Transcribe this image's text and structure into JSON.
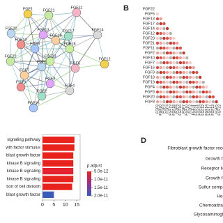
{
  "network": {
    "nodes": [
      "FGF1",
      "FGF21",
      "FGF11",
      "FGF20",
      "FGF13",
      "FGF19",
      "FGF17",
      "FGF14",
      "FGF10",
      "FGF8",
      "FGF18",
      "FGF12",
      "FGF22",
      "FGF5",
      "FGF6",
      "FGF3",
      "FGF7",
      "FGF2",
      "FGF4",
      "FGF9",
      "FGF16",
      "FGF23"
    ]
  },
  "correlation": {
    "label": "B",
    "rows": [
      "FGF22",
      "FGF5",
      "FGF13",
      "FGF17",
      "FGF14",
      "FGF12",
      "FGF23",
      "FGF21",
      "FGF11",
      "FGF2",
      "FGF10",
      "FGF7",
      "FGF16",
      "FGF9",
      "FGF18",
      "FGF19",
      "FGF4",
      "FGF3",
      "FGF20",
      "FGF8"
    ],
    "columns": [
      "FGF8",
      "FGF20",
      "FGF3",
      "FGF4",
      "FGF19",
      "FGF18",
      "FGF9",
      "FGF16",
      "FGF7",
      "FGF10",
      "FGF2",
      "FGF11",
      "FGF21",
      "FGF23",
      "FGF12",
      "FGF14",
      "FGF17",
      "FGF13",
      "FGF5",
      "FGF22"
    ]
  },
  "chart_data": {
    "type": "bar",
    "orientation": "horizontal",
    "categories": [
      "signaling pathway",
      "wth factor stimulus",
      "blast growth factor",
      "kinase B signaling",
      "kinase B signaling",
      "kinase B signaling",
      "tion of cell division",
      "blast growth factor"
    ],
    "values": [
      14,
      14,
      13.5,
      13.5,
      13.5,
      13.5,
      13,
      5
    ],
    "colors": [
      "#e8221c",
      "#e8221c",
      "#e8221c",
      "#e8221c",
      "#e42230",
      "#e8221c",
      "#e8221c",
      "#3a5cb8"
    ],
    "xlim": [
      0,
      16.5
    ],
    "xticks": [
      0,
      5,
      10,
      15
    ],
    "legend_title": "p.adjust",
    "colorbar": {
      "colors": [
        "#e8221c",
        "#9b2f8c",
        "#3a5cb8"
      ],
      "ticks": [
        {
          "value": 5e-12,
          "label": "5.0e-12"
        },
        {
          "value": 1e-11,
          "label": "1.0e-11"
        },
        {
          "value": 1.5e-11,
          "label": "1.5e-11"
        },
        {
          "value": 2e-11,
          "label": "2.0e-11"
        }
      ],
      "lim": [
        5e-12,
        2e-11
      ]
    }
  },
  "terms": {
    "label": "D",
    "items": [
      "Fibroblast growth factor receptor",
      "Growth factor",
      "Receptor ligand",
      "Growth factor",
      "Sulfur compound",
      "Heparin",
      "Chemoattractant",
      "Glycosaminoglycan"
    ]
  }
}
